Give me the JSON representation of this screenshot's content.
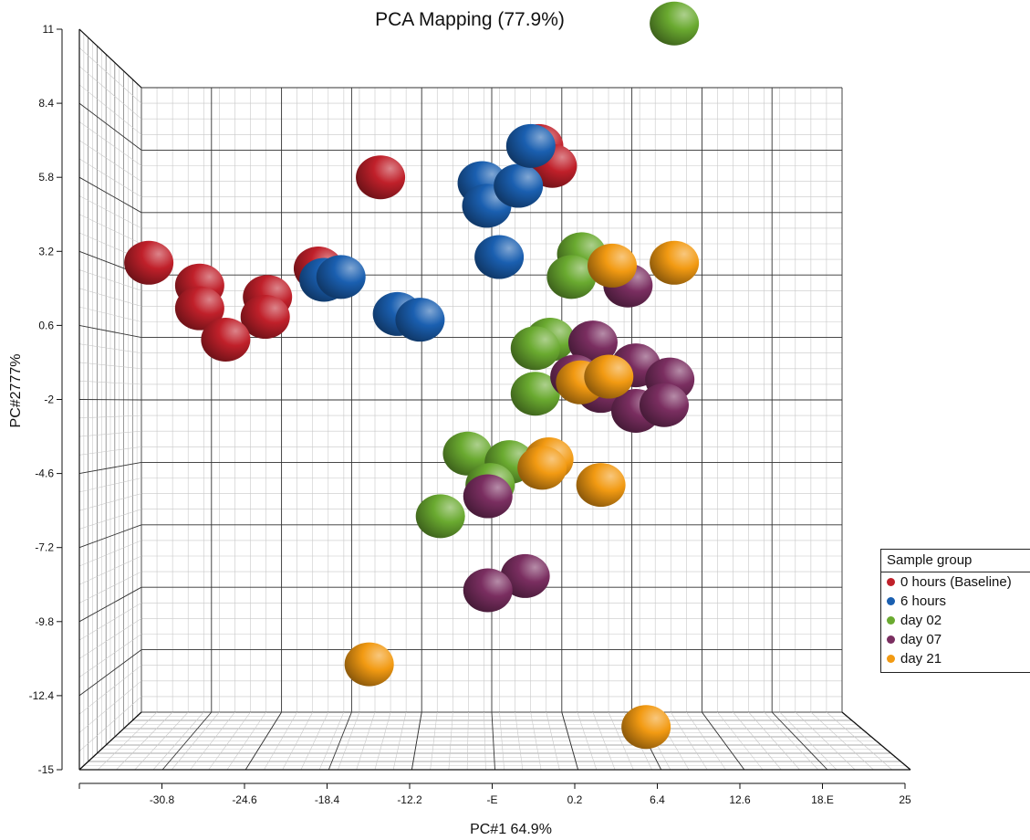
{
  "chart_data": {
    "type": "scatter",
    "title": "PCA Mapping (77.9%)",
    "xlabel": "PC#1 64.9%",
    "ylabel": "PC#2777%",
    "x_ticks": [
      "-30.8",
      "-24.6",
      "-18.4",
      "-12.2",
      "-E",
      "0.2",
      "6.4",
      "12.6",
      "18.E",
      "25"
    ],
    "x_tick_values": [
      -30.8,
      -24.6,
      -18.4,
      -12.2,
      -6,
      0.2,
      6.4,
      12.6,
      18.8,
      25
    ],
    "y_ticks": [
      "11",
      "8.4",
      "5.8",
      "3.2",
      "0.6",
      "-2",
      "-4.6",
      "-7.2",
      "-9.8",
      "-12.4",
      "-15"
    ],
    "y_tick_values": [
      11,
      8.4,
      5.8,
      3.2,
      0.6,
      -2,
      -4.6,
      -7.2,
      -9.8,
      -12.4,
      -15
    ],
    "xlim": [
      -37,
      25
    ],
    "ylim": [
      -15,
      11
    ],
    "grid": true,
    "legend_title": "Sample group",
    "legend_position": "right",
    "series": [
      {
        "name": "0 hours (Baseline)",
        "color": "#c0202a",
        "points": [
          [
            -31.5,
            2.8
          ],
          [
            -27,
            2.0
          ],
          [
            -27,
            1.2
          ],
          [
            -21,
            1.6
          ],
          [
            -21.2,
            0.9
          ],
          [
            -24.7,
            0.1
          ],
          [
            -16.5,
            2.6
          ],
          [
            -11,
            5.8
          ],
          [
            3,
            6.9
          ],
          [
            4.2,
            6.2
          ]
        ]
      },
      {
        "name": "6 hours",
        "color": "#1a5fb0",
        "points": [
          [
            -16,
            2.2
          ],
          [
            -14.5,
            2.3
          ],
          [
            -9.5,
            1.0
          ],
          [
            -7.5,
            0.8
          ],
          [
            -2,
            5.6
          ],
          [
            -1.6,
            4.8
          ],
          [
            -0.5,
            3.0
          ],
          [
            1.2,
            5.5
          ],
          [
            2.3,
            6.9
          ]
        ]
      },
      {
        "name": "day 02",
        "color": "#6aaa30",
        "points": [
          [
            15,
            11.2
          ],
          [
            6.8,
            3.1
          ],
          [
            5.9,
            2.3
          ],
          [
            4,
            0.1
          ],
          [
            2.7,
            -0.2
          ],
          [
            2.7,
            -1.8
          ],
          [
            -3.3,
            -3.9
          ],
          [
            0.4,
            -4.2
          ],
          [
            -1.3,
            -5
          ],
          [
            -5.7,
            -6.1
          ]
        ]
      },
      {
        "name": "day 07",
        "color": "#7a2e60",
        "points": [
          [
            10.9,
            2.0
          ],
          [
            7.8,
            0.0
          ],
          [
            6.2,
            -1.2
          ],
          [
            11.6,
            -0.8
          ],
          [
            8.5,
            -1.7
          ],
          [
            14.6,
            -1.3
          ],
          [
            11.6,
            -2.4
          ],
          [
            14.1,
            -2.2
          ],
          [
            -1.5,
            -5.4
          ],
          [
            1.8,
            -8.2
          ],
          [
            -1.5,
            -8.7
          ]
        ]
      },
      {
        "name": "day 21",
        "color": "#f29a12",
        "points": [
          [
            9.5,
            2.7
          ],
          [
            15,
            2.8
          ],
          [
            6.7,
            -1.4
          ],
          [
            9.2,
            -1.2
          ],
          [
            3.9,
            -4.1
          ],
          [
            3.3,
            -4.4
          ],
          [
            8.5,
            -5.0
          ],
          [
            -12,
            -11.3
          ],
          [
            12.5,
            -13.5
          ]
        ]
      }
    ]
  }
}
